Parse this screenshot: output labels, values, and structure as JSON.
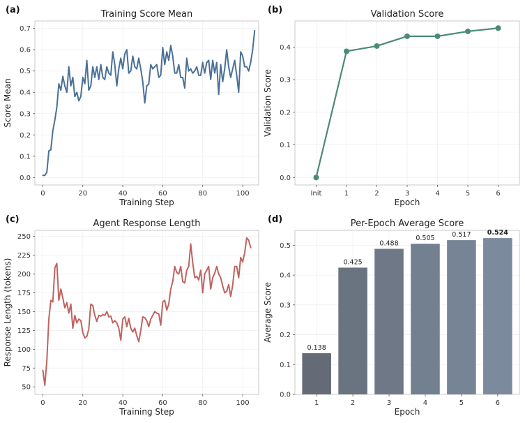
{
  "chart_data": [
    {
      "id": "a",
      "panel_label": "(a)",
      "type": "line",
      "title": "Training Score Mean",
      "xlabel": "Training Step",
      "ylabel": "Score Mean",
      "xlim": [
        -4,
        108
      ],
      "ylim": [
        -0.035,
        0.735
      ],
      "xticks": [
        0,
        20,
        40,
        60,
        80,
        100
      ],
      "yticks": [
        0.0,
        0.1,
        0.2,
        0.3,
        0.4,
        0.5,
        0.6,
        0.7
      ],
      "color": "#4a7096",
      "series": [
        {
          "name": "Training Score Mean",
          "y": [
            0.01,
            0.01,
            0.025,
            0.125,
            0.13,
            0.22,
            0.27,
            0.33,
            0.44,
            0.41,
            0.475,
            0.43,
            0.4,
            0.52,
            0.43,
            0.47,
            0.38,
            0.4,
            0.36,
            0.38,
            0.47,
            0.44,
            0.55,
            0.41,
            0.43,
            0.52,
            0.47,
            0.52,
            0.46,
            0.53,
            0.47,
            0.46,
            0.52,
            0.49,
            0.48,
            0.59,
            0.53,
            0.43,
            0.51,
            0.56,
            0.51,
            0.58,
            0.6,
            0.49,
            0.5,
            0.57,
            0.52,
            0.51,
            0.56,
            0.51,
            0.45,
            0.35,
            0.43,
            0.44,
            0.53,
            0.51,
            0.52,
            0.53,
            0.47,
            0.48,
            0.61,
            0.53,
            0.59,
            0.55,
            0.62,
            0.57,
            0.49,
            0.49,
            0.53,
            0.47,
            0.47,
            0.42,
            0.56,
            0.5,
            0.51,
            0.49,
            0.5,
            0.52,
            0.48,
            0.48,
            0.54,
            0.49,
            0.54,
            0.55,
            0.46,
            0.55,
            0.49,
            0.54,
            0.39,
            0.53,
            0.45,
            0.51,
            0.6,
            0.52,
            0.47,
            0.51,
            0.55,
            0.48,
            0.4,
            0.59,
            0.57,
            0.52,
            0.52,
            0.5,
            0.54,
            0.6,
            0.69
          ]
        }
      ]
    },
    {
      "id": "b",
      "panel_label": "(b)",
      "type": "line",
      "title": "Validation Score",
      "xlabel": "Epoch",
      "ylabel": "Validation Score",
      "categories": [
        "Init",
        "1",
        "2",
        "3",
        "4",
        "5",
        "6"
      ],
      "ylim": [
        -0.023,
        0.48
      ],
      "yticks": [
        0.0,
        0.1,
        0.2,
        0.3,
        0.4
      ],
      "color": "#4a8b72",
      "series": [
        {
          "name": "Validation Score",
          "values": [
            0.0,
            0.387,
            0.403,
            0.433,
            0.433,
            0.448,
            0.458
          ]
        }
      ]
    },
    {
      "id": "c",
      "panel_label": "(c)",
      "type": "line",
      "title": "Agent Response Length",
      "xlabel": "Training Step",
      "ylabel": "Response Length (tokens)",
      "xlim": [
        -4,
        108
      ],
      "ylim": [
        40,
        258
      ],
      "xticks": [
        0,
        20,
        40,
        60,
        80,
        100
      ],
      "yticks": [
        50,
        75,
        100,
        125,
        150,
        175,
        200,
        225,
        250
      ],
      "color": "#c0635f",
      "series": [
        {
          "name": "Response Length",
          "y": [
            72,
            52,
            85,
            140,
            165,
            163,
            208,
            214,
            165,
            180,
            168,
            155,
            162,
            148,
            160,
            128,
            145,
            135,
            140,
            138,
            122,
            115,
            117,
            127,
            160,
            158,
            145,
            137,
            145,
            144,
            146,
            145,
            150,
            143,
            144,
            135,
            138,
            135,
            128,
            112,
            140,
            143,
            130,
            141,
            128,
            123,
            128,
            118,
            110,
            125,
            143,
            142,
            138,
            130,
            140,
            145,
            150,
            148,
            147,
            132,
            163,
            165,
            152,
            160,
            180,
            190,
            210,
            202,
            200,
            210,
            190,
            188,
            205,
            210,
            240,
            215,
            195,
            197,
            192,
            205,
            175,
            200,
            205,
            210,
            180,
            195,
            201,
            210,
            200,
            195,
            184,
            175,
            177,
            186,
            170,
            185,
            210,
            210,
            195,
            222,
            216,
            228,
            248,
            245,
            235
          ]
        }
      ]
    },
    {
      "id": "d",
      "panel_label": "(d)",
      "type": "bar",
      "title": "Per-Epoch Average Score",
      "xlabel": "Epoch",
      "ylabel": "Average Score",
      "categories": [
        "1",
        "2",
        "3",
        "4",
        "5",
        "6"
      ],
      "values": [
        0.138,
        0.425,
        0.488,
        0.505,
        0.517,
        0.524
      ],
      "value_labels": [
        "0.138",
        "0.425",
        "0.488",
        "0.505",
        "0.517",
        "0.524"
      ],
      "highlight_index": 5,
      "highlight_color": "#c0504d",
      "bar_colors": [
        "#646b77",
        "#6a7380",
        "#6f7886",
        "#738090",
        "#778495",
        "#7b8a9c"
      ],
      "ylim": [
        0,
        0.55
      ],
      "yticks": [
        0.0,
        0.1,
        0.2,
        0.3,
        0.4,
        0.5
      ]
    }
  ]
}
